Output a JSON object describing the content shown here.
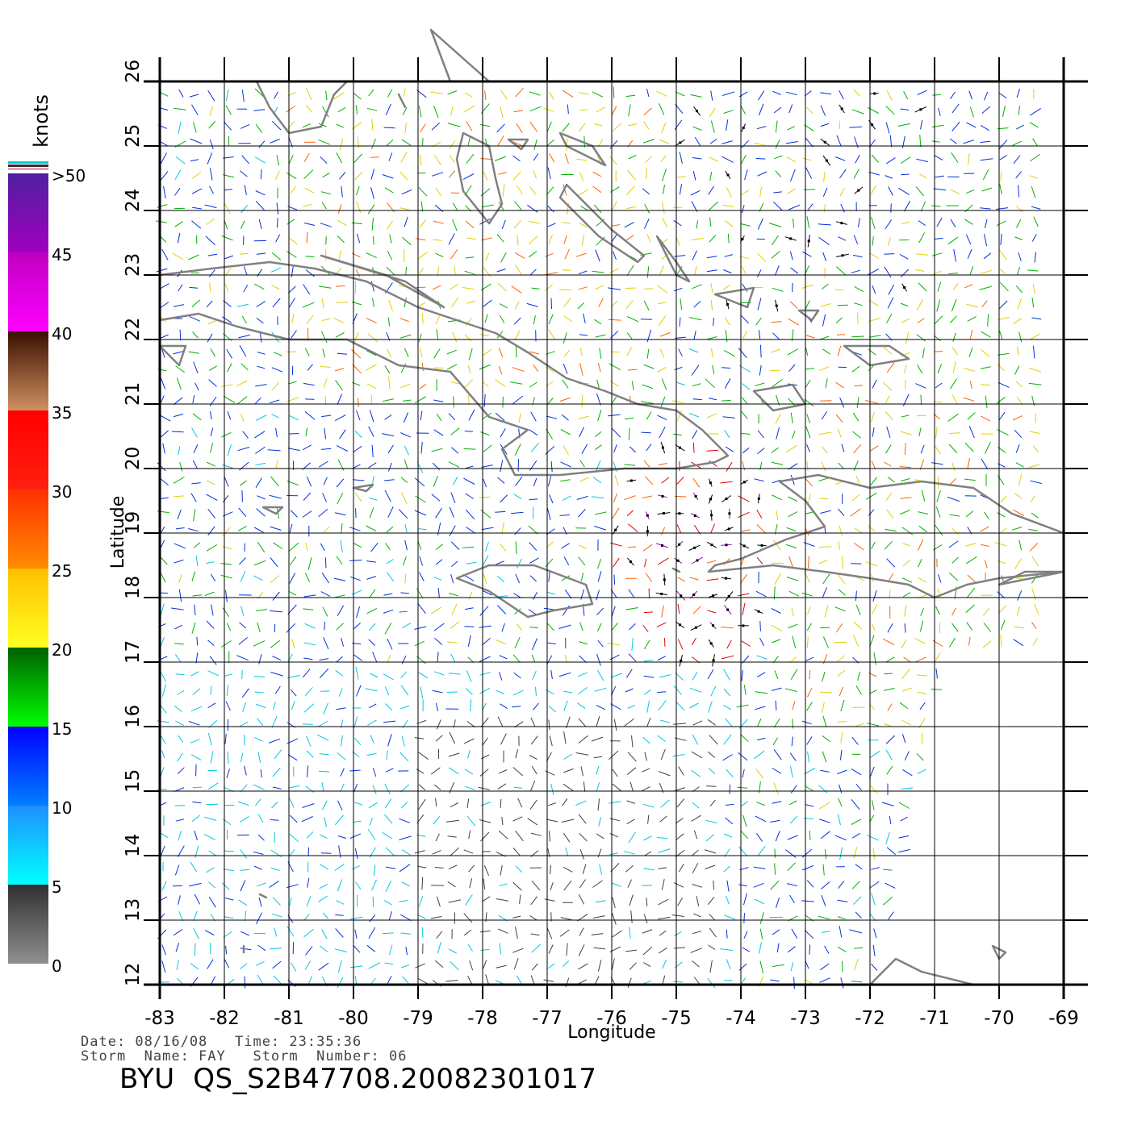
{
  "map": {
    "axes": {
      "x_label": "Longitude",
      "y_label": "Latitude",
      "lon_range": [
        -83,
        -69
      ],
      "lat_range": [
        12,
        26
      ],
      "lon_ticks": [
        "-83",
        "-82",
        "-81",
        "-80",
        "-79",
        "-78",
        "-77",
        "-76",
        "-75",
        "-74",
        "-73",
        "-72",
        "-71",
        "-70",
        "-69"
      ],
      "lat_ticks": [
        "12",
        "13",
        "14",
        "15",
        "16",
        "17",
        "18",
        "19",
        "20",
        "21",
        "22",
        "23",
        "24",
        "25",
        "26"
      ]
    },
    "grid": true,
    "land_color": "#808080",
    "colorbar": {
      "title": "knots",
      "labels": [
        ">50",
        "45",
        "40",
        "35",
        "30",
        "25",
        "20",
        "15",
        "10",
        "5",
        "0"
      ],
      "bands": [
        {
          "from": 0,
          "to": 5,
          "top": "#303030",
          "bottom": "#909090"
        },
        {
          "from": 5,
          "to": 10,
          "top": "#1e90ff",
          "bottom": "#00ffff"
        },
        {
          "from": 10,
          "to": 15,
          "top": "#0000ff",
          "bottom": "#0080ff"
        },
        {
          "from": 15,
          "to": 20,
          "top": "#006000",
          "bottom": "#00ff00"
        },
        {
          "from": 20,
          "to": 25,
          "top": "#ffc000",
          "bottom": "#ffff20"
        },
        {
          "from": 25,
          "to": 30,
          "top": "#ff3000",
          "bottom": "#ff8c00"
        },
        {
          "from": 30,
          "to": 35,
          "top": "#ff0000",
          "bottom": "#ff2010"
        },
        {
          "from": 35,
          "to": 40,
          "top": "#3a0f00",
          "bottom": "#d09060"
        },
        {
          "from": 40,
          "to": 45,
          "top": "#c000c0",
          "bottom": "#ff00ff"
        },
        {
          "from": 45,
          "to": 50,
          "top": "#5020a0",
          "bottom": "#a000c0"
        }
      ],
      "cap_colors": [
        "#00d0d0",
        "#303030",
        "#e0a0c0"
      ]
    },
    "wind_speed_colors": [
      "#404040",
      "#00c8e0",
      "#0030e0",
      "#00b000",
      "#e0d000",
      "#ff6000",
      "#e00000",
      "#000000",
      "#a000c0"
    ]
  },
  "info": {
    "date_line": "Date: 08/16/08   Time: 23:35:36",
    "storm_line": "Storm  Name: FAY   Storm  Number: 06",
    "product": "BYU  QS_S2B47708.20082301017"
  }
}
